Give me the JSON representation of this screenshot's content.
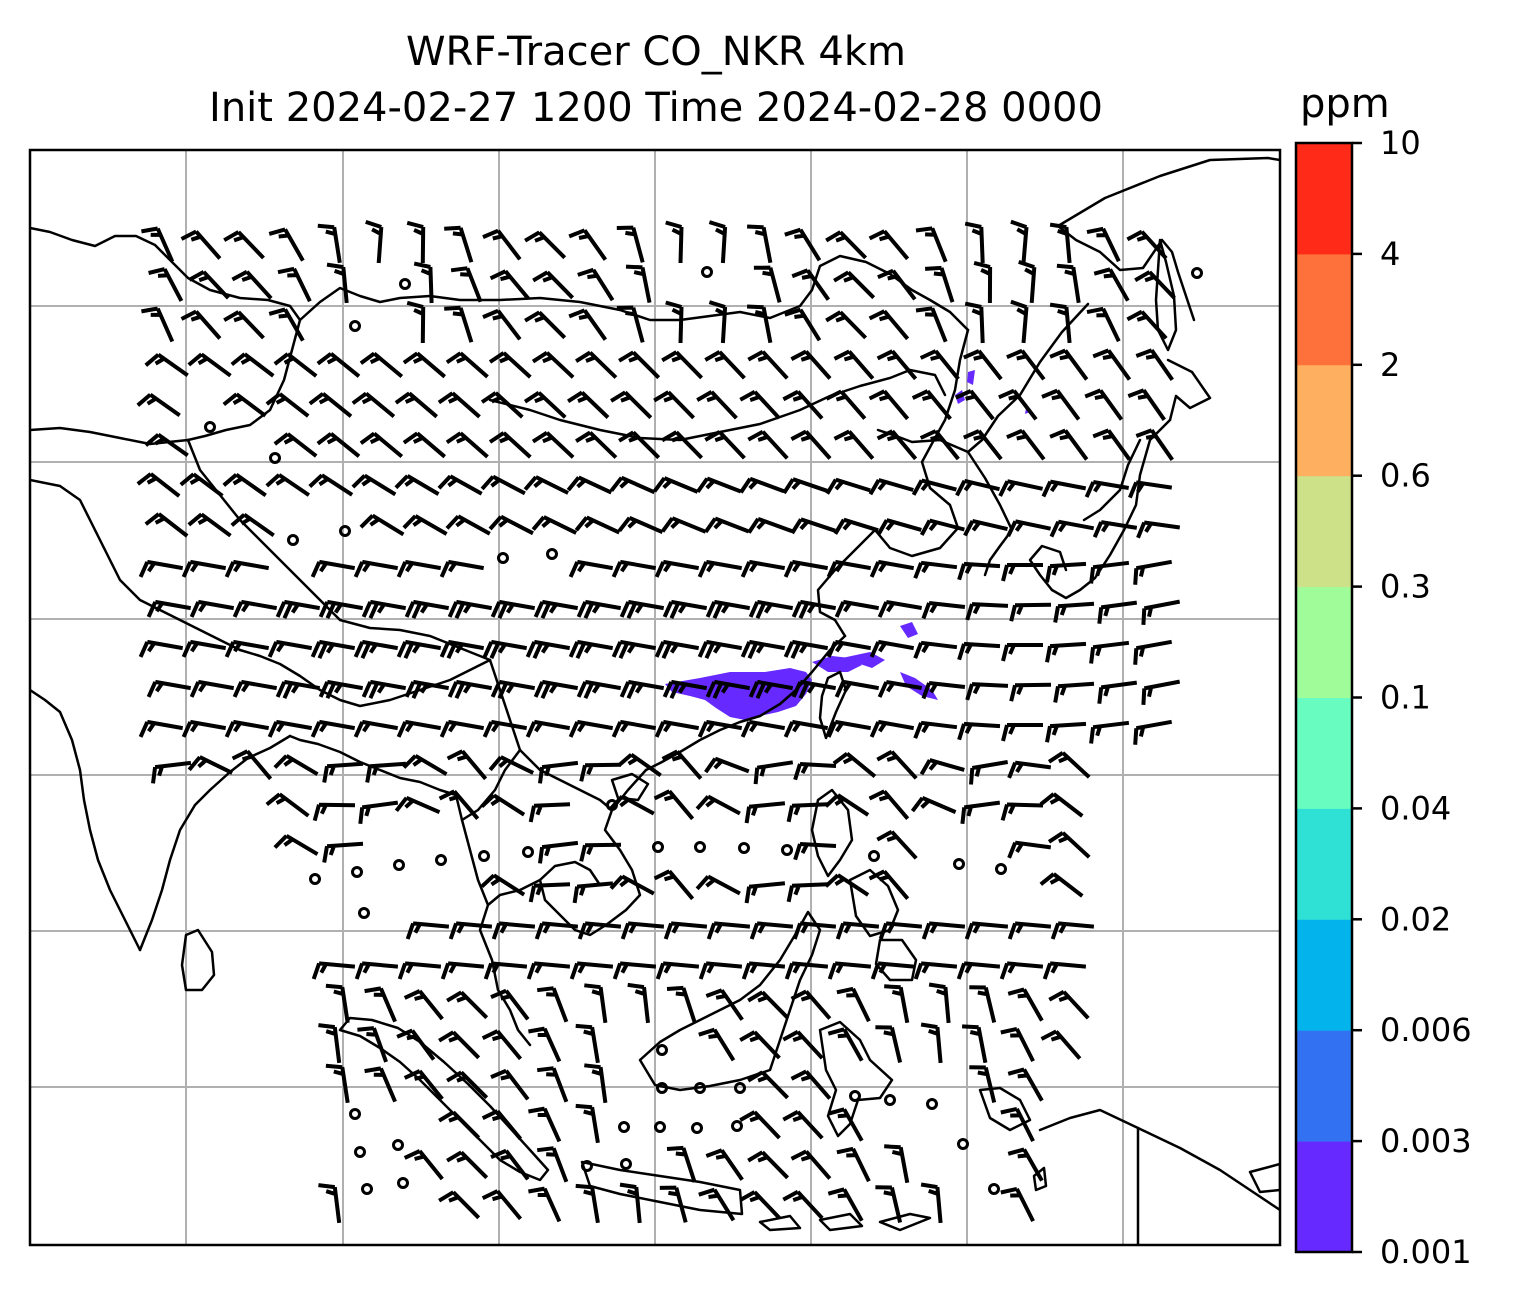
{
  "title": {
    "line1": "WRF-Tracer CO_NKR 4km",
    "line2": "Init 2024-02-27 1200 Time 2024-02-28 0000"
  },
  "colorbar": {
    "unit": "ppm",
    "levels": [
      "0.001",
      "0.003",
      "0.006",
      "0.02",
      "0.04",
      "0.1",
      "0.3",
      "0.6",
      "2",
      "4",
      "10"
    ],
    "colors": [
      "#6629ff",
      "#3272f2",
      "#03b4ec",
      "#2fe0d4",
      "#69fcc1",
      "#9ffc98",
      "#cde188",
      "#feb060",
      "#fe713b",
      "#ff2a17"
    ]
  },
  "map": {
    "frame_color": "#000000",
    "grid_color": "#b0b0b0",
    "coastline_color": "#000000",
    "tracer_color": "#6629ff",
    "wind_barb_color": "#000000",
    "plume_ppm_range": "0.001-0.003"
  }
}
